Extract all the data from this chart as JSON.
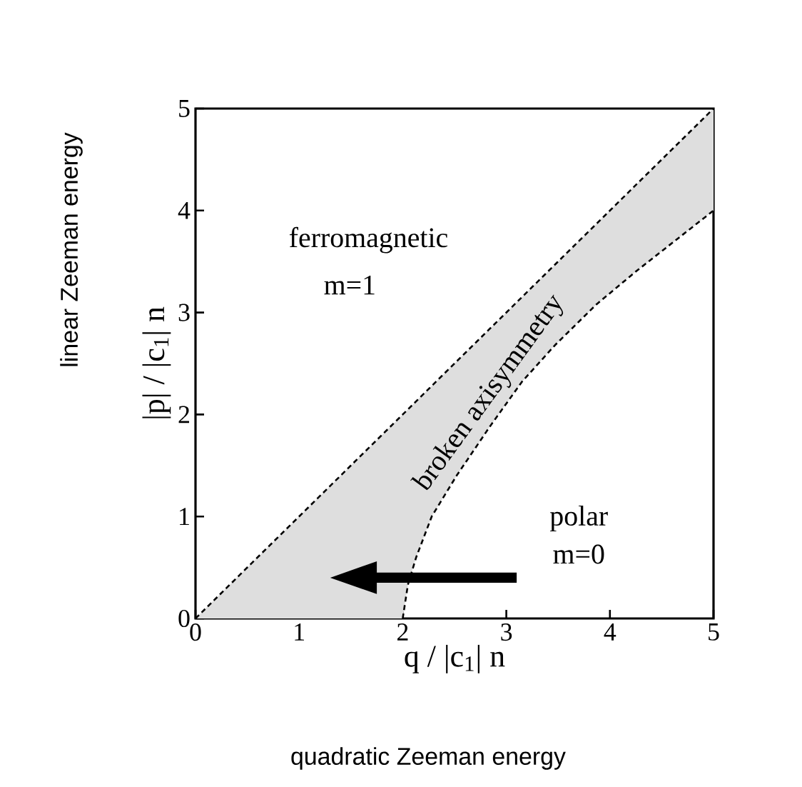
{
  "chart_data": {
    "type": "line",
    "xlabel": "q / |c$_{1}$| n",
    "ylabel": "|p| / |c$_{1}$| n",
    "xlim": [
      0,
      5
    ],
    "ylim": [
      0,
      5
    ],
    "xticks": [
      0,
      1,
      2,
      3,
      4,
      5
    ],
    "yticks": [
      0,
      1,
      2,
      3,
      4,
      5
    ],
    "line_style": "dashed",
    "series": [
      {
        "color": "#000000",
        "x": [
          0,
          2,
          2.05,
          2.13,
          2.28,
          2.52,
          2.84,
          3.15,
          3.47,
          3.87,
          4.26,
          5
        ],
        "values": [
          0,
          2,
          2.05,
          2.13,
          2.28,
          2.52,
          2.84,
          3.15,
          3.47,
          3.87,
          4.26,
          5
        ],
        "lower": [
          0,
          0,
          0.33,
          0.6,
          1.0,
          1.4,
          1.88,
          2.32,
          2.68,
          3.08,
          3.41,
          4.0
        ],
        "upper": [
          0,
          2,
          2.05,
          2.13,
          2.28,
          2.52,
          2.84,
          3.15,
          3.47,
          3.87,
          4.26,
          5
        ]
      },
      {
        "color": "#000000",
        "x": [
          2,
          2.05,
          2.13,
          2.28,
          2.52,
          2.84,
          3.15,
          3.47,
          3.87,
          4.26,
          5
        ],
        "values": [
          0,
          0.33,
          0.6,
          1.0,
          1.4,
          1.88,
          2.32,
          2.68,
          3.08,
          3.41,
          4.0
        ]
      }
    ],
    "annotations": [
      "ferromagnetic",
      "m=1",
      "broken axisymmetry",
      "polar",
      "m=0",
      "linear Zeeman energy",
      "quadratic Zeeman energy"
    ]
  }
}
